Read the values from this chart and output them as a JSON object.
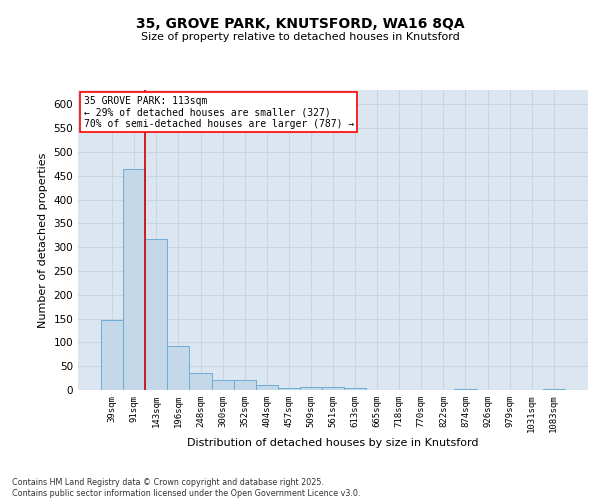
{
  "title_line1": "35, GROVE PARK, KNUTSFORD, WA16 8QA",
  "title_line2": "Size of property relative to detached houses in Knutsford",
  "xlabel": "Distribution of detached houses by size in Knutsford",
  "ylabel": "Number of detached properties",
  "annotation_title": "35 GROVE PARK: 113sqm",
  "annotation_line1": "← 29% of detached houses are smaller (327)",
  "annotation_line2": "70% of semi-detached houses are larger (787) →",
  "categories": [
    "39sqm",
    "91sqm",
    "143sqm",
    "196sqm",
    "248sqm",
    "300sqm",
    "352sqm",
    "404sqm",
    "457sqm",
    "509sqm",
    "561sqm",
    "613sqm",
    "665sqm",
    "718sqm",
    "770sqm",
    "822sqm",
    "874sqm",
    "926sqm",
    "979sqm",
    "1031sqm",
    "1083sqm"
  ],
  "bar_heights": [
    148,
    465,
    318,
    92,
    36,
    22,
    20,
    10,
    5,
    7,
    6,
    5,
    1,
    0,
    0,
    0,
    2,
    0,
    0,
    0,
    3
  ],
  "bar_color": "#c5d8ea",
  "bar_edge_color": "#6aaed6",
  "grid_color": "#c8d4e0",
  "background_color": "#dce6f0",
  "vline_color": "#cc0000",
  "vline_index": 1.5,
  "ylim": [
    0,
    630
  ],
  "yticks": [
    0,
    50,
    100,
    150,
    200,
    250,
    300,
    350,
    400,
    450,
    500,
    550,
    600
  ],
  "footer_line1": "Contains HM Land Registry data © Crown copyright and database right 2025.",
  "footer_line2": "Contains public sector information licensed under the Open Government Licence v3.0."
}
